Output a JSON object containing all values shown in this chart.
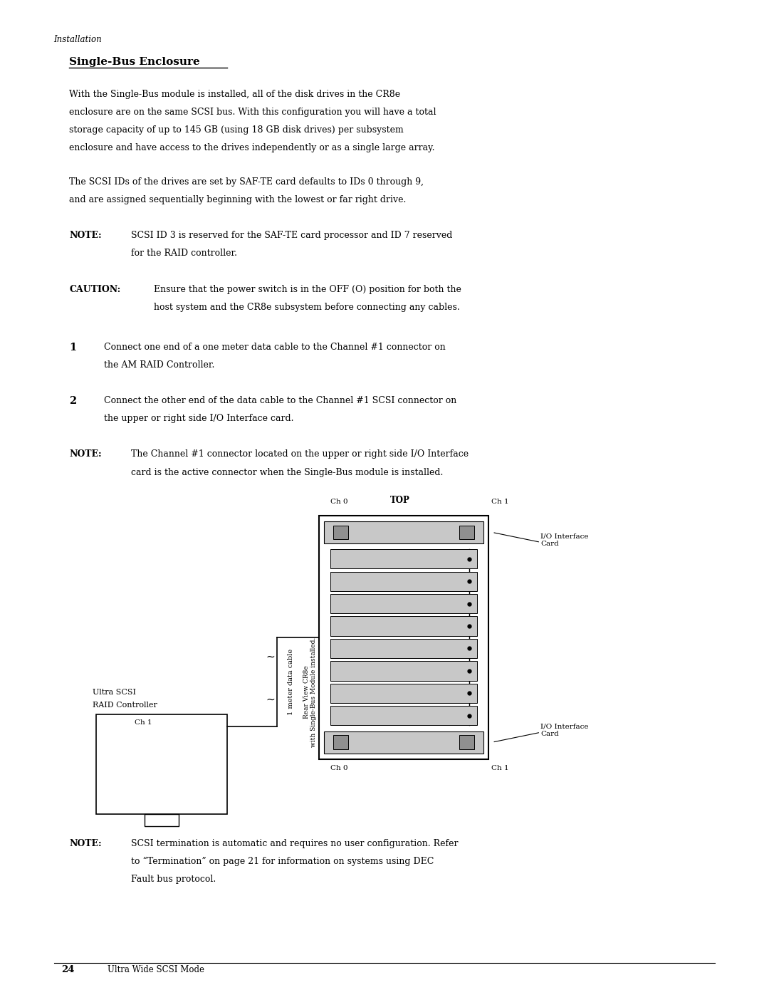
{
  "background_color": "#ffffff",
  "page_width": 10.8,
  "page_height": 13.97,
  "header_italic": "Installation",
  "section_title": "Single-Bus Enclosure",
  "para1_lines": [
    "With the Single-Bus module is installed, all of the disk drives in the CR8e",
    "enclosure are on the same SCSI bus. With this configuration you will have a total",
    "storage capacity of up to 145 GB (using 18 GB disk drives) per subsystem",
    "enclosure and have access to the drives independently or as a single large array."
  ],
  "para2_lines": [
    "The SCSI IDs of the drives are set by SAF-TE card defaults to IDs 0 through 9,",
    "and are assigned sequentially beginning with the lowest or far right drive."
  ],
  "note1_lines": [
    "SCSI ID 3 is reserved for the SAF-TE card processor and ID 7 reserved",
    "for the RAID controller."
  ],
  "caution_lines": [
    "Ensure that the power switch is in the OFF (O) position for both the",
    "host system and the CR8e subsystem before connecting any cables."
  ],
  "step1_lines": [
    "Connect one end of a one meter data cable to the Channel #1 connector on",
    "the AM RAID Controller."
  ],
  "step2_lines": [
    "Connect the other end of the data cable to the Channel #1 SCSI connector on",
    "the upper or right side I/O Interface card."
  ],
  "note2_lines": [
    "The Channel #1 connector located on the upper or right side I/O Interface",
    "card is the active connector when the Single-Bus module is installed."
  ],
  "note3_lines": [
    "SCSI termination is automatic and requires no user configuration. Refer",
    "to “Termination” on page 21 for information on systems using DEC",
    "Fault bus protocol."
  ],
  "footer_page": "24",
  "footer_text": "Ultra Wide SCSI Mode",
  "text_color": "#000000",
  "light_gray": "#c8c8c8",
  "dark_gray": "#808080",
  "connector_gray": "#909090"
}
